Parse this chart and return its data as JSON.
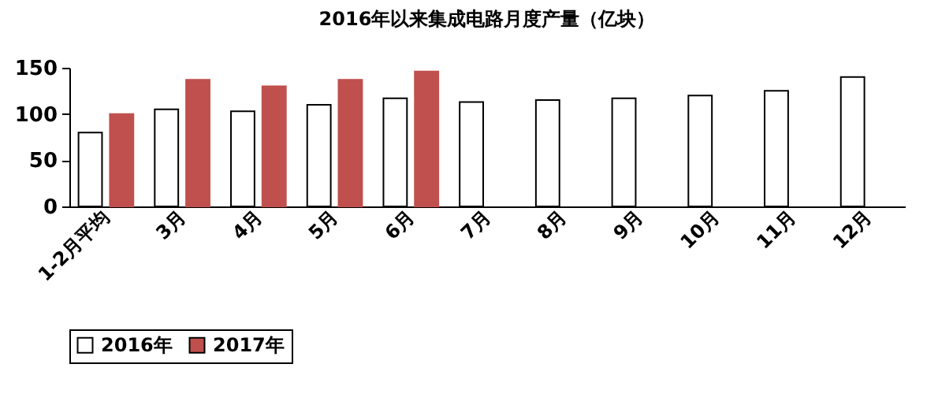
{
  "chart_data": {
    "type": "bar",
    "title": "2016年以来集成电路月度产量（亿块）",
    "categories": [
      "1-2月平均",
      "3月",
      "4月",
      "5月",
      "6月",
      "7月",
      "8月",
      "9月",
      "10月",
      "11月",
      "12月"
    ],
    "series": [
      {
        "name": "2016年",
        "color": "#ffffff",
        "values": [
          80,
          105,
          103,
          110,
          117,
          113,
          115,
          117,
          120,
          125,
          140
        ]
      },
      {
        "name": "2017年",
        "color": "#c0504d",
        "values": [
          100,
          137,
          130,
          137,
          146,
          null,
          null,
          null,
          null,
          null,
          null
        ]
      }
    ],
    "ylim": [
      0,
      150
    ],
    "yticks": [
      0,
      50,
      100,
      150
    ],
    "grid": false,
    "legend": "bottom"
  }
}
